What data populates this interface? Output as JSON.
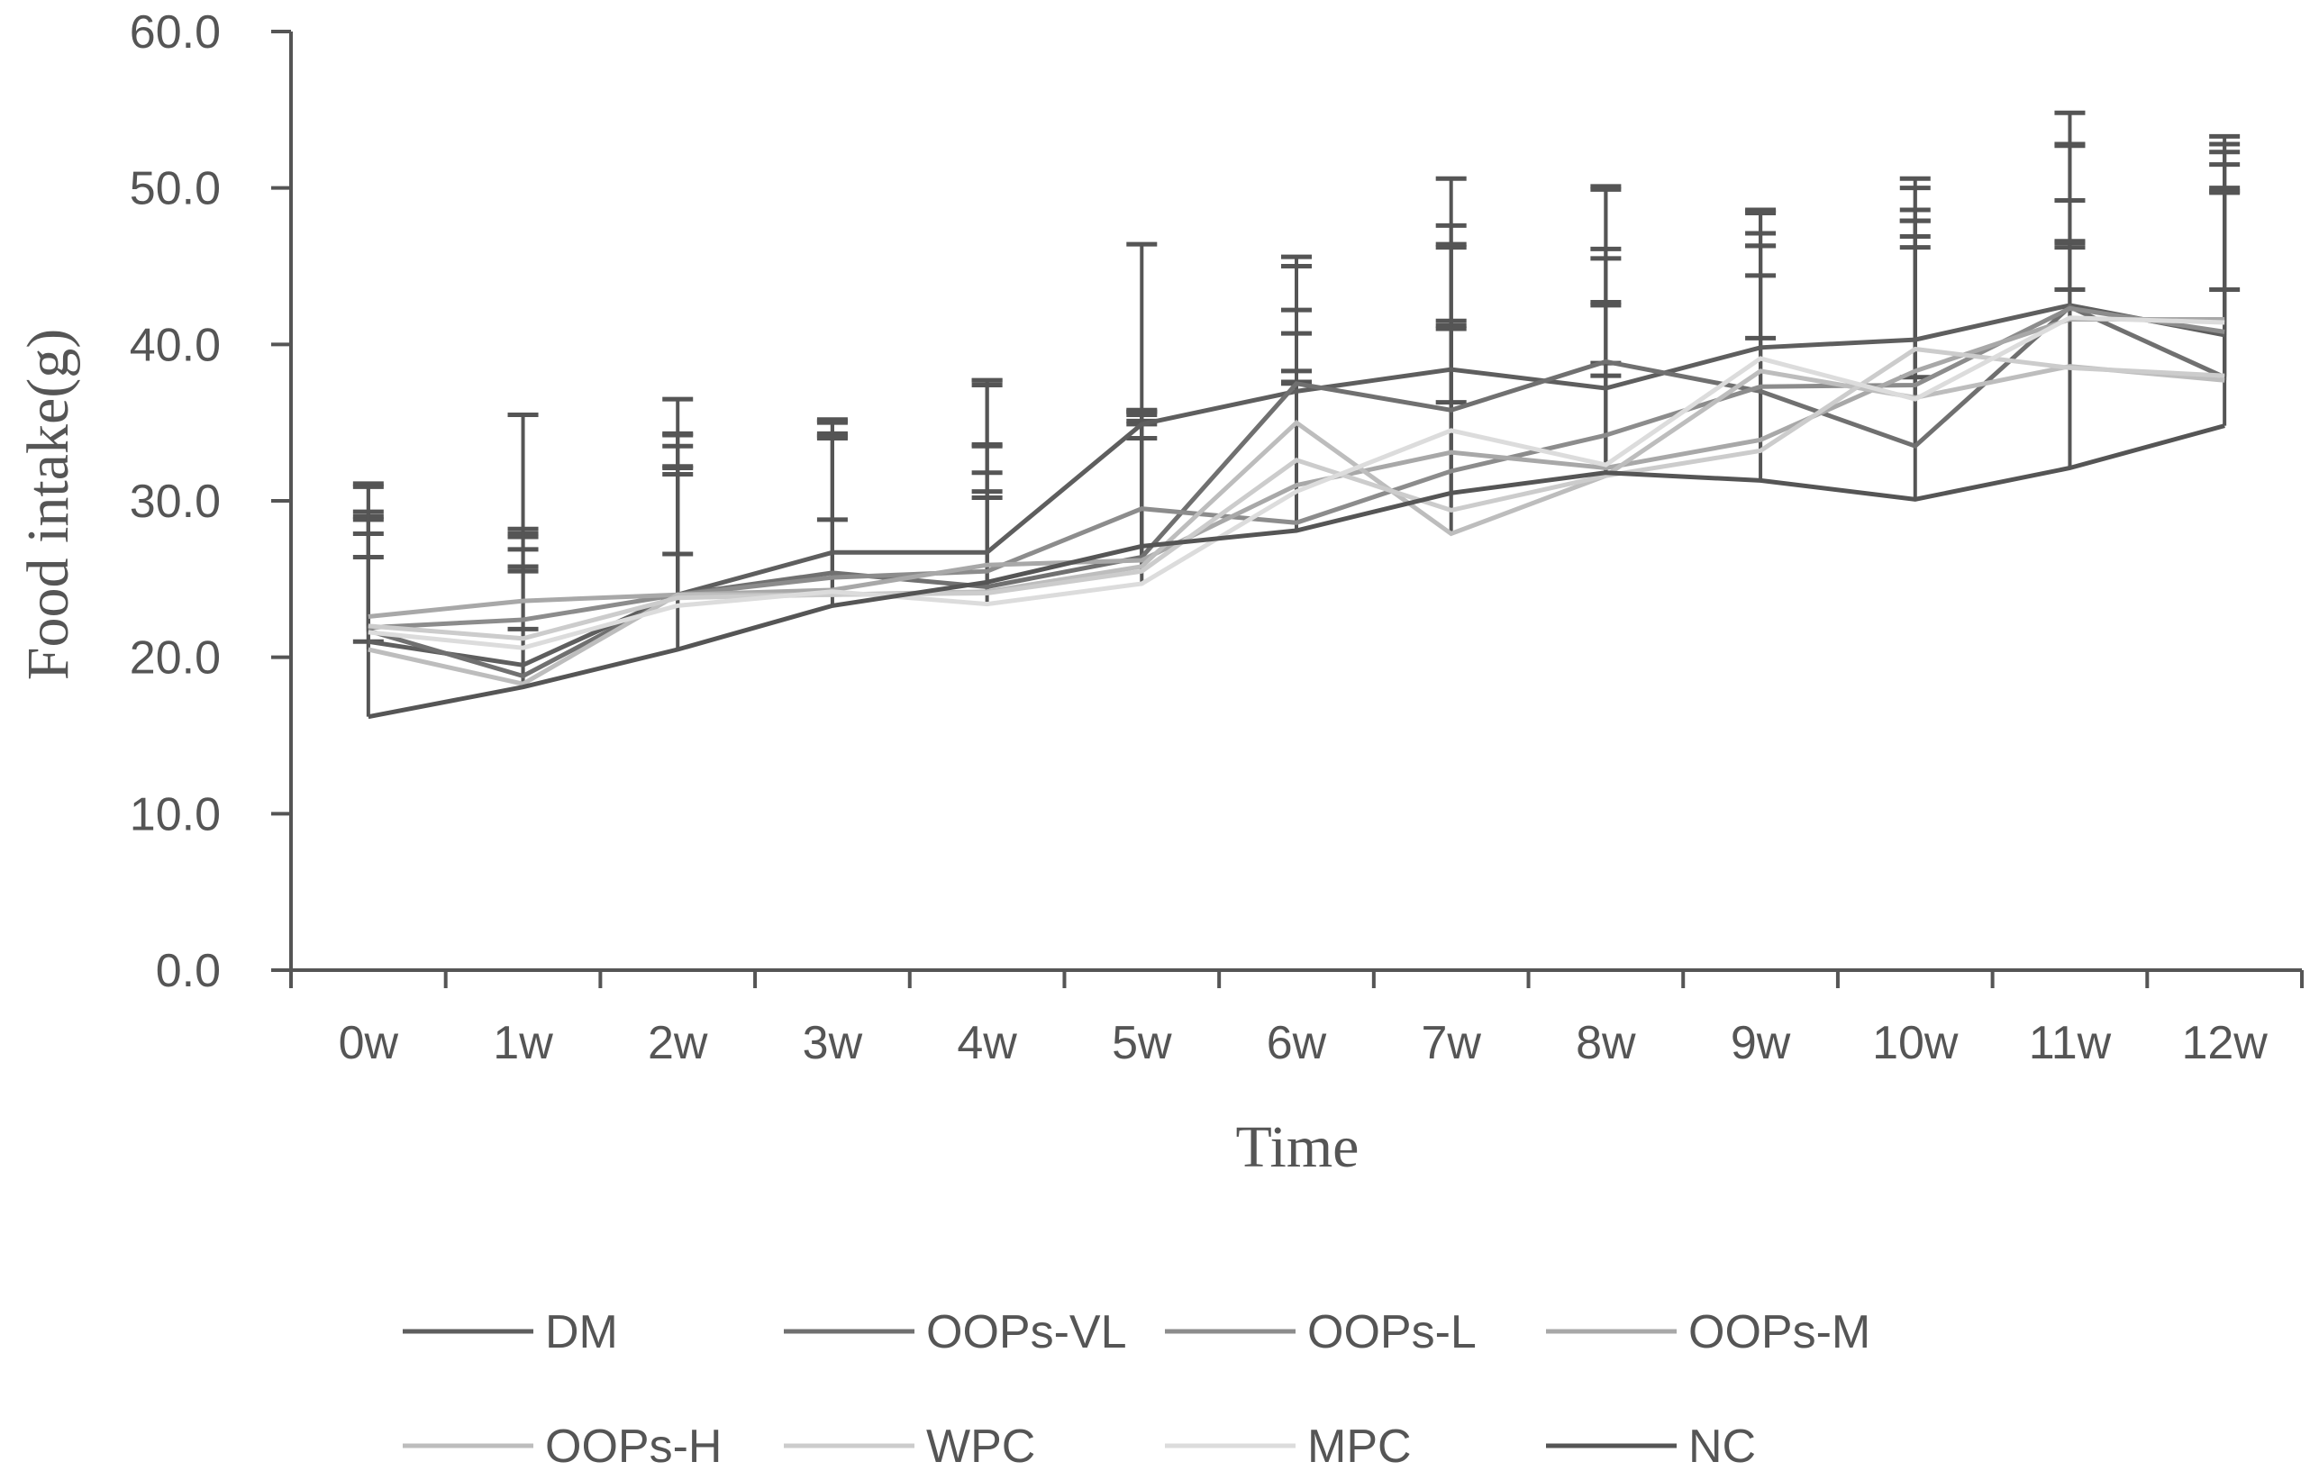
{
  "chart_data": {
    "type": "line",
    "title": "",
    "xlabel": "Time",
    "ylabel": "Food intake(g)",
    "ylim": [
      0,
      60
    ],
    "yticks": [
      "0.0",
      "10.0",
      "20.0",
      "30.0",
      "40.0",
      "50.0",
      "60.0"
    ],
    "categories": [
      "0w",
      "1w",
      "2w",
      "3w",
      "4w",
      "5w",
      "6w",
      "7w",
      "8w",
      "9w",
      "10w",
      "11w",
      "12w"
    ],
    "grid": false,
    "legend_position": "bottom",
    "series": [
      {
        "name": "DM",
        "color": "#5e5e5e",
        "values": [
          21.0,
          19.5,
          24.0,
          26.7,
          26.7,
          34.9,
          37.0,
          38.4,
          37.2,
          39.8,
          40.3,
          42.5,
          40.6
        ],
        "errors": [
          9.9,
          16.0,
          12.5,
          8.3,
          11.0,
          11.5,
          8.0,
          12.2,
          12.9,
          8.6,
          10.3,
          12.3,
          12.2
        ]
      },
      {
        "name": "OOPs-VL",
        "color": "#707070",
        "values": [
          21.7,
          18.8,
          24.0,
          25.4,
          24.5,
          26.4,
          37.5,
          35.8,
          38.9,
          37.0,
          33.5,
          42.4,
          37.9
        ],
        "errors": [
          7.6,
          8.9,
          10.3,
          8.8,
          13.2,
          9.4,
          8.1,
          10.4,
          11.0,
          11.5,
          13.4,
          10.4,
          11.8
        ]
      },
      {
        "name": "OOPs-L",
        "color": "#8c8c8c",
        "values": [
          21.9,
          22.4,
          24.0,
          25.1,
          25.5,
          29.5,
          28.6,
          31.9,
          34.2,
          37.3,
          37.4,
          42.3,
          40.8
        ],
        "errors": [
          7.1,
          5.5,
          8.2,
          9.2,
          11.9,
          6.0,
          9.0,
          9.3,
          8.3,
          9.0,
          11.2,
          4.2,
          9.0
        ]
      },
      {
        "name": "OOPs-M",
        "color": "#a8a8a8",
        "values": [
          22.6,
          23.6,
          24.0,
          24.3,
          25.9,
          26.2,
          31.0,
          33.1,
          32.1,
          33.9,
          38.3,
          41.6,
          41.6
        ],
        "errors": [
          6.2,
          4.6,
          9.5,
          10.8,
          5.9,
          9.5,
          7.3,
          14.5,
          10.6,
          10.5,
          9.6,
          4.6,
          11.7
        ]
      },
      {
        "name": "OOPs-H",
        "color": "#bdbdbd",
        "values": [
          20.5,
          18.3,
          24.0,
          24.0,
          24.2,
          25.8,
          35.0,
          27.9,
          31.6,
          38.3,
          36.6,
          38.6,
          37.7
        ],
        "errors": [
          10.6,
          7.2,
          7.7,
          10.0,
          6.4,
          9.3,
          7.2,
          18.5,
          6.4,
          10.3,
          11.3,
          14.1,
          14.6
        ]
      },
      {
        "name": "WPC",
        "color": "#cccccc",
        "values": [
          22.0,
          21.2,
          23.8,
          24.0,
          24.1,
          25.5,
          32.6,
          29.4,
          31.6,
          33.2,
          39.7,
          38.5,
          38.0
        ],
        "errors": [
          5.9,
          5.7,
          8.3,
          11.2,
          9.5,
          8.5,
          8.1,
          6.9,
          14.5,
          13.9,
          10.3,
          10.7,
          13.5
        ]
      },
      {
        "name": "MPC",
        "color": "#dcdcdc",
        "values": [
          21.6,
          20.6,
          23.3,
          24.2,
          23.4,
          24.7,
          30.6,
          34.5,
          32.3,
          39.1,
          36.5,
          41.7,
          41.4
        ],
        "errors": [
          4.8,
          5.2,
          10.9,
          9.9,
          6.8,
          11.0,
          6.9,
          7.0,
          13.2,
          7.2,
          9.7,
          4.9,
          8.6
        ]
      },
      {
        "name": "NC",
        "color": "#555555",
        "values": [
          16.2,
          18.1,
          20.5,
          23.3,
          24.8,
          27.1,
          28.1,
          30.5,
          31.8,
          31.3,
          30.1,
          32.1,
          34.8
        ],
        "errors": [
          4.8,
          3.7,
          6.1,
          5.5,
          8.7,
          7.8,
          9.5,
          10.5,
          7.0,
          9.1,
          7.8,
          11.4,
          8.7
        ]
      }
    ]
  }
}
